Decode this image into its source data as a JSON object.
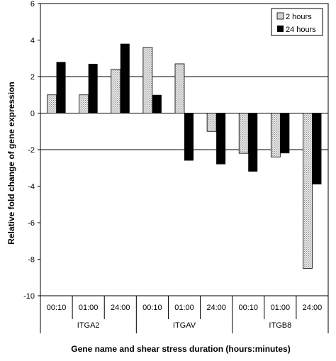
{
  "chart_data": {
    "type": "bar",
    "groups": [
      "ITGA2",
      "ITGAV",
      "ITGB8"
    ],
    "categories": [
      "00:10",
      "01:00",
      "24:00",
      "00:10",
      "01:00",
      "24:00",
      "00:10",
      "01:00",
      "24:00"
    ],
    "series": [
      {
        "name": "2 hours",
        "values": [
          1.0,
          1.0,
          2.4,
          3.6,
          2.7,
          -1.0,
          -2.2,
          -2.4,
          -8.5
        ],
        "color": "#d8d8d8",
        "pattern": "dotted"
      },
      {
        "name": "24 hours",
        "values": [
          2.8,
          2.7,
          3.8,
          1.0,
          -2.6,
          -2.8,
          -3.2,
          -2.2,
          -3.9
        ],
        "color": "#000000",
        "pattern": "solid"
      }
    ],
    "ylabel": "Relative fold change of gene expression",
    "xlabel": "Gene name and shear stress duration (hours:minutes)",
    "ylim": [
      -10,
      6
    ],
    "yticks": [
      "6",
      "4",
      "2",
      "0",
      "-2",
      "-4",
      "-6",
      "-8",
      "-10"
    ],
    "gridlines_at": [
      2,
      -2
    ],
    "legend_position": "top-right"
  }
}
